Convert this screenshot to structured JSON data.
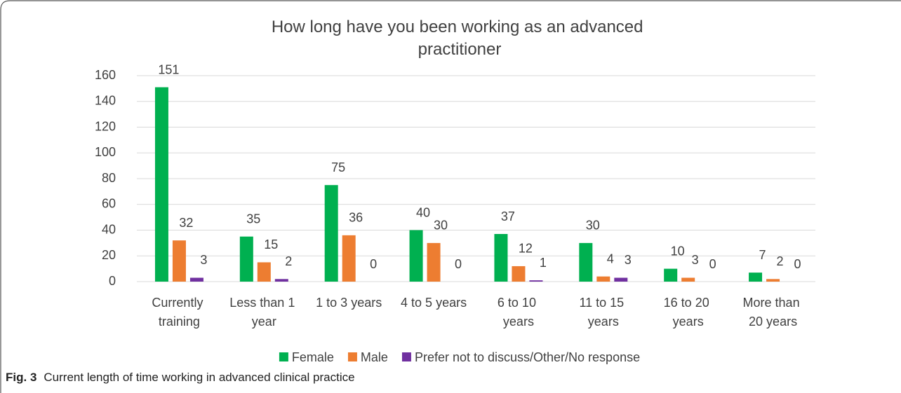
{
  "chart_data": {
    "type": "bar",
    "title": "How long have you been working as an advanced practitioner",
    "categories": [
      "Currently training",
      "Less than 1 year",
      "1 to 3 years",
      "4 to 5 years",
      "6 to 10 years",
      "11 to 15 years",
      "16 to 20 years",
      "More than 20 years"
    ],
    "series": [
      {
        "name": "Female",
        "color": "#00b050",
        "values": [
          151,
          35,
          75,
          40,
          37,
          30,
          10,
          7
        ]
      },
      {
        "name": "Male",
        "color": "#ed7d31",
        "values": [
          32,
          15,
          36,
          30,
          12,
          4,
          3,
          2
        ]
      },
      {
        "name": "Prefer not to discuss/Other/No response",
        "color": "#7030a0",
        "values": [
          3,
          2,
          0,
          0,
          1,
          3,
          0,
          0
        ]
      }
    ],
    "ylim": [
      0,
      160
    ],
    "yticks": [
      0,
      20,
      40,
      60,
      80,
      100,
      120,
      140,
      160
    ],
    "grid": true,
    "legend": "bottom"
  },
  "caption": {
    "label": "Fig. 3",
    "text": "Current length of time working in advanced clinical practice"
  }
}
